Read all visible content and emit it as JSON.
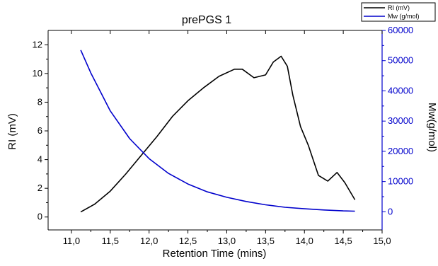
{
  "chart_data": {
    "type": "line",
    "title": "prePGS 1",
    "xlabel": "Retention Time (mins)",
    "ylabel_left": "RI (mV)",
    "ylabel_right": "Mw(g/mol)",
    "xlim": [
      10.7,
      15.0
    ],
    "ylim_left": [
      -0.9,
      13.0
    ],
    "ylim_right": [
      -6000,
      60000
    ],
    "x_ticks": [
      "11,0",
      "11,5",
      "12,0",
      "12,5",
      "13,0",
      "13,5",
      "14,0",
      "14,5",
      "15,0"
    ],
    "y_left_ticks": [
      "0",
      "2",
      "4",
      "6",
      "8",
      "10",
      "12"
    ],
    "y_right_ticks": [
      "0",
      "10000",
      "20000",
      "30000",
      "40000",
      "50000",
      "60000"
    ],
    "grid": false,
    "legend_position": "top-right",
    "series": [
      {
        "name": "RI (mV)",
        "axis": "left",
        "color": "#000000",
        "points": [
          [
            11.12,
            0.35
          ],
          [
            11.3,
            0.9
          ],
          [
            11.5,
            1.8
          ],
          [
            11.7,
            3.0
          ],
          [
            11.9,
            4.3
          ],
          [
            12.1,
            5.6
          ],
          [
            12.3,
            7.0
          ],
          [
            12.5,
            8.1
          ],
          [
            12.7,
            9.0
          ],
          [
            12.9,
            9.8
          ],
          [
            13.1,
            10.3
          ],
          [
            13.2,
            10.3
          ],
          [
            13.35,
            9.7
          ],
          [
            13.5,
            9.9
          ],
          [
            13.6,
            10.8
          ],
          [
            13.7,
            11.2
          ],
          [
            13.78,
            10.5
          ],
          [
            13.85,
            8.5
          ],
          [
            13.95,
            6.3
          ],
          [
            14.05,
            5.0
          ],
          [
            14.18,
            2.9
          ],
          [
            14.3,
            2.5
          ],
          [
            14.42,
            3.1
          ],
          [
            14.52,
            2.4
          ],
          [
            14.65,
            1.2
          ]
        ]
      },
      {
        "name": "Mw (g/mol)",
        "axis": "right",
        "color": "#0000cc",
        "points": [
          [
            11.12,
            53500
          ],
          [
            11.25,
            45900
          ],
          [
            11.5,
            33400
          ],
          [
            11.75,
            24200
          ],
          [
            12.0,
            17600
          ],
          [
            12.25,
            12700
          ],
          [
            12.5,
            9200
          ],
          [
            12.75,
            6600
          ],
          [
            13.0,
            4800
          ],
          [
            13.25,
            3400
          ],
          [
            13.5,
            2300
          ],
          [
            13.75,
            1500
          ],
          [
            14.0,
            1000
          ],
          [
            14.25,
            600
          ],
          [
            14.5,
            300
          ],
          [
            14.65,
            200
          ]
        ]
      }
    ]
  }
}
